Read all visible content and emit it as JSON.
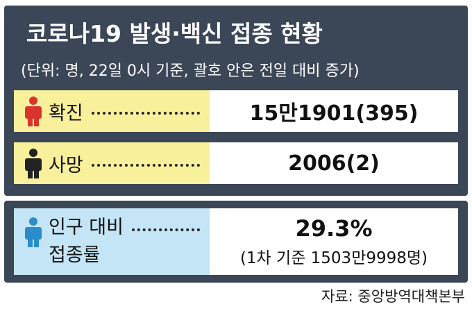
{
  "header": {
    "title": "코로나19 발생·백신 접종 현황",
    "subtitle": "(단위: 명, 22일 0시 기준, 괄호 안은 전일 대비 증가)"
  },
  "rows": [
    {
      "label": "확진",
      "value": "15만1901(395)"
    },
    {
      "label": "사망",
      "value": "2006(2)"
    }
  ],
  "vaccination": {
    "label_lines": [
      "인구 대비",
      "접종률"
    ],
    "value": "29.3%",
    "note": "(1차 기준 1503만9998명)"
  },
  "source": "자료: 중앙방역대책본부"
}
